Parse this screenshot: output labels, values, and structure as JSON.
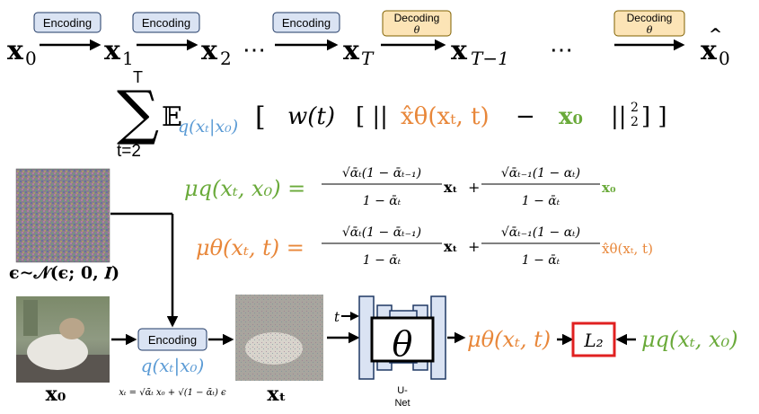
{
  "chain": {
    "states": [
      {
        "base": "x",
        "sub": "0",
        "hat": false
      },
      {
        "base": "x",
        "sub": "1",
        "hat": false
      },
      {
        "base": "x",
        "sub": "2",
        "hat": false
      },
      {
        "base": "x",
        "sub": "T",
        "hat": false
      },
      {
        "base": "x",
        "sub": "T−1",
        "hat": false
      },
      {
        "base": "x",
        "sub": "0",
        "hat": true
      }
    ],
    "ellipsis": "⋯",
    "encode_label": "Encoding",
    "decode_label": "Decoding",
    "decode_param": "θ"
  },
  "loss": {
    "sum_top": "T",
    "sum_bottom": "t=2",
    "sigma": "∑",
    "expect": "𝔼",
    "q_sub": "q(xₜ|x₀)",
    "open_bracket": "[",
    "weight": "w(t)",
    "inner_open": "[ ||",
    "model_term": "x̂θ(xₜ, t)",
    "minus": "−",
    "target_term": "x₀",
    "norm_close": "||",
    "norm_exp": "2",
    "norm_sub": "2",
    "close": "] ]"
  },
  "mu_q": {
    "lhs": "μq(xₜ, x₀) =",
    "term1_num": "√ᾱₜ(1 − ᾱₜ₋₁)",
    "term1_den": "1 − ᾱₜ",
    "term1_var": "xₜ",
    "plus": "+",
    "term2_num": "√ᾱₜ₋₁(1 − αₜ)",
    "term2_den": "1 − ᾱₜ",
    "term2_var": "x₀"
  },
  "mu_theta": {
    "lhs": "μθ(xₜ, t) =",
    "term1_num": "√ᾱₜ(1 − ᾱₜ₋₁)",
    "term1_den": "1 − ᾱₜ",
    "term1_var": "xₜ",
    "plus": "+",
    "term2_num": "√ᾱₜ₋₁(1 − αₜ)",
    "term2_den": "1 − ᾱₜ",
    "term2_var": "x̂θ(xₜ, t)"
  },
  "noise_caption": "ϵ∼𝒩(ϵ; 0, 𝑰)",
  "x0_label": "x₀",
  "xt_label": "xₜ",
  "encoding_box": "Encoding",
  "q_label": "q(xₜ|x₀)",
  "reparam": "xₜ = √ᾱₜ x₀ + √(1 − ᾱₜ) ϵ",
  "unet": {
    "t_input": "t",
    "theta": "θ",
    "label_line1": "U-",
    "label_line2": "Net"
  },
  "output_mu_theta": "μθ(xₜ, t)",
  "loss_box": "L₂",
  "output_mu_q": "μq(xₜ, x₀)",
  "colors": {
    "green": "#6aaa3a",
    "orange": "#e8873a",
    "blue": "#5b9bd5",
    "red": "#e02020",
    "navy": "#1f3864",
    "enc_fill": "#dae3f3",
    "dec_fill": "#fce4b6",
    "unet_fill": "#dae3f3"
  }
}
